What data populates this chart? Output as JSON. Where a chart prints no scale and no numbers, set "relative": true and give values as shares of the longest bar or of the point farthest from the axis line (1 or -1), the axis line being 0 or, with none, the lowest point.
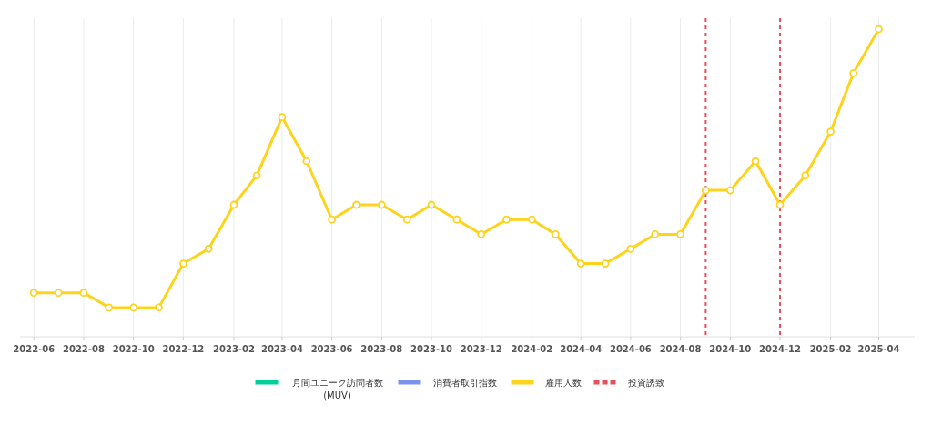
{
  "chart_data": {
    "type": "line",
    "relative": true,
    "x": [
      "2022-06",
      "2022-07",
      "2022-08",
      "2022-09",
      "2022-10",
      "2022-11",
      "2022-12",
      "2023-01",
      "2023-02",
      "2023-03",
      "2023-04",
      "2023-05",
      "2023-06",
      "2023-07",
      "2023-08",
      "2023-09",
      "2023-10",
      "2023-11",
      "2023-12",
      "2024-01",
      "2024-02",
      "2024-03",
      "2024-04",
      "2024-05",
      "2024-06",
      "2024-07",
      "2024-08",
      "2024-09",
      "2024-10",
      "2024-11",
      "2024-12",
      "2025-01",
      "2025-02",
      "2025-03",
      "2025-04"
    ],
    "xlim": [
      "2022-05-15",
      "2025-05-15"
    ],
    "xticks": [
      "2022-06",
      "2022-08",
      "2022-10",
      "2022-12",
      "2023-02",
      "2023-04",
      "2023-06",
      "2023-08",
      "2023-10",
      "2023-12",
      "2024-02",
      "2024-04",
      "2024-06",
      "2024-08",
      "2024-10",
      "2024-12",
      "2025-02",
      "2025-04"
    ],
    "series": [
      {
        "name": "月間ユニーク訪問者数 (MUV)",
        "color": "#00d19a",
        "values": [
          null,
          null,
          null,
          null,
          null,
          null,
          null,
          null,
          null,
          null,
          null,
          null,
          null,
          null,
          null,
          null,
          null,
          null,
          null,
          null,
          null,
          null,
          null,
          null,
          null,
          null,
          null,
          null,
          null,
          null,
          null,
          null,
          null,
          null,
          null
        ]
      },
      {
        "name": "消費者取引指数",
        "color": "#7b93f0",
        "values": [
          null,
          null,
          null,
          null,
          null,
          null,
          null,
          null,
          null,
          null,
          null,
          null,
          null,
          null,
          null,
          null,
          null,
          null,
          null,
          null,
          null,
          null,
          null,
          null,
          null,
          null,
          null,
          null,
          null,
          null,
          null,
          null,
          null,
          null,
          null
        ]
      },
      {
        "name": "雇用人数",
        "color": "#fdd31c",
        "values": [
          0.143,
          0.143,
          0.143,
          0.095,
          0.095,
          0.095,
          0.238,
          0.286,
          0.429,
          0.524,
          0.714,
          0.571,
          0.381,
          0.429,
          0.429,
          0.381,
          0.429,
          0.381,
          0.333,
          0.381,
          0.381,
          0.333,
          0.238,
          0.238,
          0.286,
          0.333,
          0.333,
          0.476,
          0.476,
          0.571,
          0.429,
          0.524,
          0.667,
          0.857,
          1
        ]
      }
    ],
    "ref_lines": [
      {
        "axis": "x",
        "value": "2024-09",
        "label": "投資誘致",
        "color": "#e8505b",
        "line_style": "dashed"
      },
      {
        "axis": "x",
        "value": "2024-12",
        "color": "#e8505b",
        "line_style": "dashed"
      }
    ],
    "grid": "x",
    "marker": "circle",
    "line_style": "solid",
    "legend": "bottom"
  }
}
